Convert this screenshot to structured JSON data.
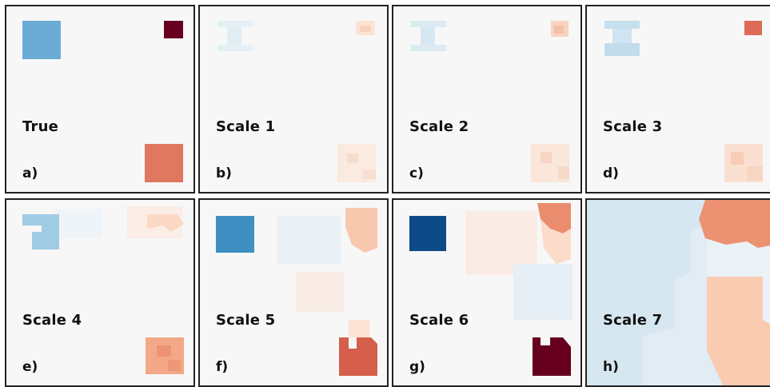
{
  "panels": [
    {
      "title": "True",
      "letter": "a)"
    },
    {
      "title": "Scale 1",
      "letter": "b)"
    },
    {
      "title": "Scale 2",
      "letter": "c)"
    },
    {
      "title": "Scale 3",
      "letter": "d)"
    },
    {
      "title": "Scale 4",
      "letter": "e)"
    },
    {
      "title": "Scale 5",
      "letter": "f)"
    },
    {
      "title": "Scale 6",
      "letter": "g)"
    },
    {
      "title": "Scale 7",
      "letter": "h)"
    }
  ],
  "colors": {
    "background": "#f7f7f7",
    "border": "#222222",
    "blue_light": "#d1e5f0",
    "blue_mid": "#92c5de",
    "blue": "#4393c3",
    "blue_dark": "#053061",
    "red_light": "#fddbc7",
    "red_mid": "#f4a582",
    "red": "#d6604d",
    "red_dark": "#67001f"
  },
  "colormap": "RdBu_r"
}
